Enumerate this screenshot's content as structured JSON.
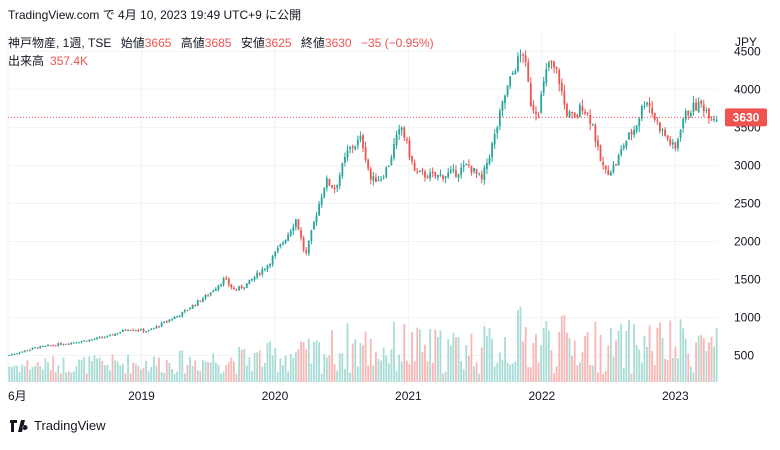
{
  "header": {
    "publish_text": "TradingView.com で 4月 10, 2023 19:49 UTC+9 に公開"
  },
  "legend": {
    "symbol": "神戸物産, 1週, TSE",
    "open_label": "始値",
    "open_value": "3665",
    "high_label": "高値",
    "high_value": "3685",
    "low_label": "安値",
    "low_value": "3625",
    "close_label": "終値",
    "close_value": "3630",
    "change": "−35 (−0.95%)",
    "volume_label": "出来高",
    "volume_value": "357.4K"
  },
  "footer": {
    "brand": "TradingView"
  },
  "colors": {
    "up": "#26a69a",
    "down": "#ef5350",
    "up_volume": "#a9dcd6",
    "down_volume": "#f7b7b5",
    "grid": "#f0f3fa",
    "text": "#131722"
  },
  "chart_data": {
    "type": "candlestick",
    "currency": "JPY",
    "last_price": 3630,
    "last_price_label": "3630",
    "ylim": [
      150,
      4780
    ],
    "y_ticks": [
      500,
      1000,
      1500,
      2000,
      2500,
      3000,
      3500,
      4000,
      4500
    ],
    "y_tick_labels": [
      "500",
      "1000",
      "1500",
      "2000",
      "2500",
      "3000",
      "3500",
      "4000",
      "4500"
    ],
    "x_range": [
      2018.0,
      2023.32
    ],
    "x_ticks": [
      2018.0,
      2019.0,
      2020.0,
      2021.0,
      2022.0,
      2023.0
    ],
    "x_tick_labels": [
      "6月",
      "2019",
      "2020",
      "2021",
      "2022",
      "2023"
    ],
    "price_path": [
      [
        2018.0,
        500
      ],
      [
        2018.2,
        600
      ],
      [
        2018.4,
        650
      ],
      [
        2018.6,
        700
      ],
      [
        2018.75,
        750
      ],
      [
        2018.9,
        850
      ],
      [
        2019.05,
        820
      ],
      [
        2019.3,
        1050
      ],
      [
        2019.5,
        1300
      ],
      [
        2019.62,
        1500
      ],
      [
        2019.7,
        1350
      ],
      [
        2019.8,
        1450
      ],
      [
        2019.95,
        1700
      ],
      [
        2020.1,
        2100
      ],
      [
        2020.16,
        2300
      ],
      [
        2020.2,
        2000
      ],
      [
        2020.23,
        1800
      ],
      [
        2020.3,
        2300
      ],
      [
        2020.38,
        2800
      ],
      [
        2020.45,
        2700
      ],
      [
        2020.55,
        3200
      ],
      [
        2020.65,
        3350
      ],
      [
        2020.72,
        2800
      ],
      [
        2020.8,
        2850
      ],
      [
        2020.85,
        3000
      ],
      [
        2020.9,
        3300
      ],
      [
        2020.95,
        3500
      ],
      [
        2021.0,
        3200
      ],
      [
        2021.05,
        2900
      ],
      [
        2021.2,
        2850
      ],
      [
        2021.35,
        2900
      ],
      [
        2021.45,
        3000
      ],
      [
        2021.55,
        2800
      ],
      [
        2021.65,
        3400
      ],
      [
        2021.72,
        3900
      ],
      [
        2021.8,
        4300
      ],
      [
        2021.86,
        4500
      ],
      [
        2021.92,
        3800
      ],
      [
        2021.97,
        3700
      ],
      [
        2022.05,
        4350
      ],
      [
        2022.12,
        4200
      ],
      [
        2022.18,
        3700
      ],
      [
        2022.25,
        3600
      ],
      [
        2022.3,
        3800
      ],
      [
        2022.38,
        3550
      ],
      [
        2022.43,
        3100
      ],
      [
        2022.48,
        2900
      ],
      [
        2022.55,
        3000
      ],
      [
        2022.62,
        3300
      ],
      [
        2022.7,
        3500
      ],
      [
        2022.78,
        3900
      ],
      [
        2022.85,
        3600
      ],
      [
        2022.92,
        3400
      ],
      [
        2023.0,
        3200
      ],
      [
        2023.05,
        3600
      ],
      [
        2023.12,
        3750
      ],
      [
        2023.2,
        3800
      ],
      [
        2023.27,
        3650
      ],
      [
        2023.32,
        3630
      ]
    ]
  }
}
